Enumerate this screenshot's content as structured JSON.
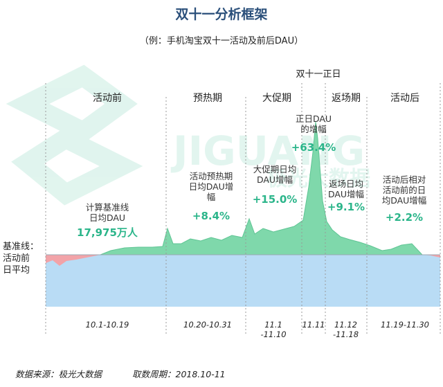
{
  "header": {
    "title": "双十一分析框架",
    "subtitle": "（例：手机淘宝双十一活动及前后DAU）"
  },
  "watermark": {
    "text": "JIGUANG",
    "text2": "极光大数据"
  },
  "chart_data": {
    "type": "area",
    "peak_label": "双十一正日",
    "baseline_label": "基准线：\n活动前\n日平均",
    "phases": [
      {
        "name": "活动前",
        "dates": "10.1-10.19",
        "note": "计算基准线\n日均DAU",
        "value": "17,975万人"
      },
      {
        "name": "预热期",
        "dates": "10.20-10.31",
        "note": "活动预热期\n日均DAU增\n幅",
        "value": "+8.4%"
      },
      {
        "name": "大促期",
        "dates": "11.1\n-11.10",
        "note": "大促期日均\nDAU增幅",
        "value": "+15.0%"
      },
      {
        "name": "",
        "dates": "11.11",
        "note": "正日DAU\n的增幅",
        "value": "+63.4%"
      },
      {
        "name": "返场期",
        "dates": "11.12\n-11.18",
        "note": "返场日均\nDAU增幅",
        "value": "+9.1%"
      },
      {
        "name": "活动后",
        "dates": "11.19-11.30",
        "note": "活动后相对\n活动前的日\n均DAU增幅",
        "value": "+2.2%"
      }
    ],
    "colors": {
      "above": "#7fd8ab",
      "below": "#f2a3a8",
      "base": "#b9dcf5",
      "accent": "#2bb58a"
    }
  },
  "footer": {
    "source": "数据来源：极光大数据",
    "period": "取数周期：2018.10-11"
  }
}
